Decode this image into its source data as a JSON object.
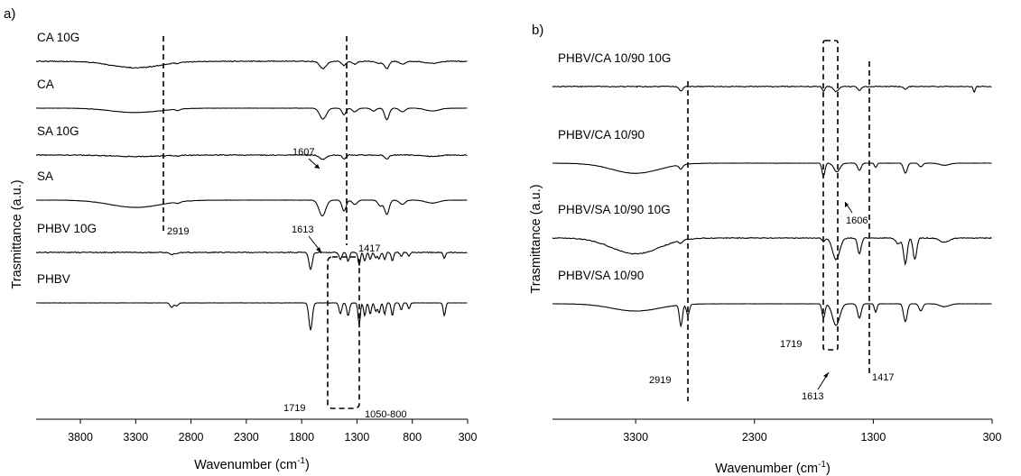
{
  "chart_data": [
    {
      "type": "line",
      "panel_label": "a)",
      "xlabel_main": "Wavenumber (cm",
      "xlabel_sup": "-1",
      "xlabel_end": ")",
      "ylabel": "Trasmittance (a.u.)",
      "xlim": [
        4200,
        300
      ],
      "x_ticks": [
        "3800",
        "3300",
        "2800",
        "2300",
        "1800",
        "1300",
        "800",
        "300"
      ],
      "x_tick_values": [
        3800,
        3300,
        2800,
        2300,
        1800,
        1300,
        800,
        300
      ],
      "series": [
        {
          "name": "CA 10G",
          "baseline": 0.72,
          "peaks": [
            [
              3300,
              0.09,
              220
            ],
            [
              2919,
              0.01,
              20
            ],
            [
              1607,
              0.1,
              30
            ],
            [
              1417,
              0.06,
              18
            ],
            [
              1320,
              0.04,
              22
            ],
            [
              1100,
              0.03,
              30
            ],
            [
              1030,
              0.1,
              20
            ],
            [
              890,
              0.04,
              25
            ],
            [
              620,
              0.03,
              60
            ]
          ]
        },
        {
          "name": "CA",
          "baseline": 0.72,
          "peaks": [
            [
              3300,
              0.06,
              220
            ],
            [
              2919,
              0.02,
              20
            ],
            [
              1607,
              0.15,
              30
            ],
            [
              1417,
              0.09,
              18
            ],
            [
              1320,
              0.05,
              22
            ],
            [
              1150,
              0.04,
              20
            ],
            [
              1030,
              0.16,
              20
            ],
            [
              890,
              0.05,
              25
            ],
            [
              620,
              0.04,
              60
            ]
          ]
        },
        {
          "name": "SA 10G",
          "baseline": 0.72,
          "peaks": [
            [
              3300,
              0.02,
              220
            ],
            [
              2919,
              0.01,
              20
            ],
            [
              1607,
              0.06,
              30
            ],
            [
              1417,
              0.05,
              18
            ],
            [
              1030,
              0.05,
              20
            ],
            [
              620,
              0.02,
              60
            ]
          ]
        },
        {
          "name": "SA",
          "baseline": 0.72,
          "peaks": [
            [
              3300,
              0.1,
              230
            ],
            [
              2919,
              0.02,
              20
            ],
            [
              1613,
              0.22,
              30
            ],
            [
              1417,
              0.15,
              18
            ],
            [
              1320,
              0.06,
              22
            ],
            [
              1090,
              0.08,
              20
            ],
            [
              1030,
              0.2,
              20
            ],
            [
              890,
              0.06,
              25
            ],
            [
              620,
              0.04,
              60
            ]
          ]
        },
        {
          "name": "PHBV 10G",
          "baseline": 0.72,
          "peaks": [
            [
              2975,
              0.03,
              15
            ],
            [
              2930,
              0.02,
              15
            ],
            [
              1719,
              0.24,
              15
            ],
            [
              1450,
              0.1,
              12
            ],
            [
              1380,
              0.12,
              12
            ],
            [
              1280,
              0.18,
              10
            ],
            [
              1230,
              0.12,
              10
            ],
            [
              1180,
              0.1,
              10
            ],
            [
              1130,
              0.08,
              10
            ],
            [
              1100,
              0.09,
              10
            ],
            [
              1050,
              0.1,
              10
            ],
            [
              980,
              0.12,
              10
            ],
            [
              900,
              0.06,
              10
            ],
            [
              830,
              0.05,
              10
            ],
            [
              510,
              0.08,
              10
            ]
          ]
        },
        {
          "name": "PHBV",
          "baseline": 0.72,
          "peaks": [
            [
              2975,
              0.06,
              15
            ],
            [
              2930,
              0.04,
              15
            ],
            [
              1719,
              0.38,
              15
            ],
            [
              1450,
              0.15,
              12
            ],
            [
              1380,
              0.18,
              12
            ],
            [
              1280,
              0.3,
              10
            ],
            [
              1230,
              0.18,
              10
            ],
            [
              1180,
              0.16,
              10
            ],
            [
              1130,
              0.12,
              10
            ],
            [
              1100,
              0.14,
              10
            ],
            [
              1050,
              0.16,
              10
            ],
            [
              980,
              0.18,
              10
            ],
            [
              900,
              0.1,
              10
            ],
            [
              830,
              0.08,
              10
            ],
            [
              510,
              0.18,
              10
            ]
          ]
        }
      ],
      "annotations": [
        "2919",
        "1607",
        "1613",
        "1417",
        "1719",
        "1050-800"
      ]
    },
    {
      "type": "line",
      "panel_label": "b)",
      "xlabel_main": "Wavenumber (cm",
      "xlabel_sup": "-1",
      "xlabel_end": ")",
      "ylabel": "Trasmittance (a.u.)",
      "xlim": [
        4000,
        300
      ],
      "x_ticks": [
        "3300",
        "2300",
        "1300",
        "300"
      ],
      "x_tick_values": [
        3300,
        2300,
        1300,
        300
      ],
      "series": [
        {
          "name": "PHBV/CA 10/90 10G",
          "baseline": 0.72,
          "peaks": [
            [
              2919,
              0.06,
              15
            ],
            [
              1719,
              0.06,
              12
            ],
            [
              1613,
              0.07,
              20
            ],
            [
              1417,
              0.05,
              15
            ],
            [
              1030,
              0.04,
              15
            ],
            [
              450,
              0.08,
              8
            ]
          ]
        },
        {
          "name": "PHBV/CA 10/90",
          "baseline": 0.72,
          "peaks": [
            [
              3300,
              0.14,
              200
            ],
            [
              2919,
              0.06,
              15
            ],
            [
              1719,
              0.18,
              12
            ],
            [
              1606,
              0.12,
              25
            ],
            [
              1417,
              0.1,
              15
            ],
            [
              1280,
              0.06,
              10
            ],
            [
              1030,
              0.14,
              15
            ],
            [
              900,
              0.05,
              15
            ],
            [
              700,
              0.03,
              40
            ]
          ]
        },
        {
          "name": "PHBV/SA 10/90 10G",
          "baseline": 0.72,
          "peaks": [
            [
              3300,
              0.22,
              200
            ],
            [
              2919,
              0.04,
              15
            ],
            [
              1719,
              0.05,
              12
            ],
            [
              1613,
              0.3,
              30
            ],
            [
              1417,
              0.22,
              15
            ],
            [
              1090,
              0.08,
              20
            ],
            [
              1030,
              0.36,
              15
            ],
            [
              950,
              0.3,
              15
            ],
            [
              700,
              0.06,
              40
            ]
          ]
        },
        {
          "name": "PHBV/SA 10/90",
          "baseline": 0.72,
          "peaks": [
            [
              3300,
              0.1,
              200
            ],
            [
              2919,
              0.3,
              12
            ],
            [
              2860,
              0.15,
              12
            ],
            [
              1719,
              0.2,
              12
            ],
            [
              1613,
              0.3,
              30
            ],
            [
              1417,
              0.2,
              15
            ],
            [
              1280,
              0.12,
              10
            ],
            [
              1030,
              0.25,
              15
            ],
            [
              900,
              0.1,
              15
            ],
            [
              700,
              0.04,
              40
            ]
          ]
        }
      ],
      "annotations": [
        "1606",
        "1719",
        "2919",
        "1613",
        "1417"
      ]
    }
  ]
}
